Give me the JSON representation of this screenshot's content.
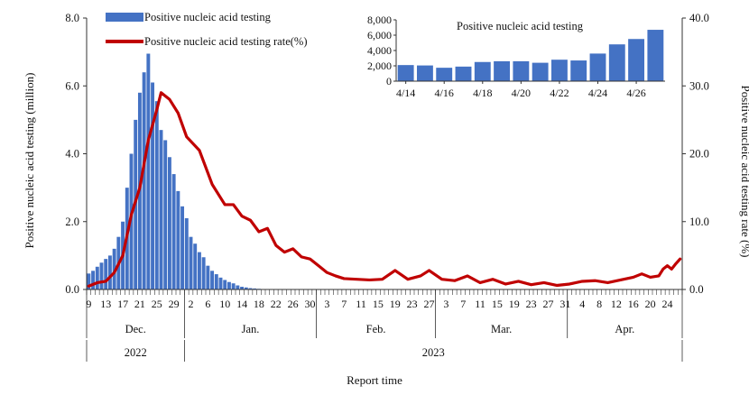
{
  "colors": {
    "bars": "#4472c4",
    "line": "#c00000",
    "axis": "#333333"
  },
  "chart_data": [
    {
      "type": "bar+line",
      "legend": {
        "placement": "top-left",
        "items": [
          {
            "label": "Positive nucleic acid testing",
            "symbol": "bar"
          },
          {
            "label": "Positive nucleic acid testing rate(%)",
            "symbol": "line"
          }
        ]
      },
      "xlabel": "Report time",
      "ylabel_left": "Positive nucleic acid testing (million)",
      "ylabel_right": "Positive nucleic acid testing rate (%)",
      "ylim_left": [
        0,
        8
      ],
      "ylim_right": [
        0,
        40
      ],
      "yticks_left": [
        "0.0",
        "2.0",
        "4.0",
        "6.0",
        "8.0"
      ],
      "yticks_right": [
        "0.0",
        "10.0",
        "20.0",
        "30.0",
        "40.0"
      ],
      "x_day_labels": [
        "9",
        "13",
        "17",
        "21",
        "25",
        "29",
        "2",
        "6",
        "10",
        "14",
        "18",
        "22",
        "26",
        "30",
        "3",
        "7",
        "11",
        "15",
        "19",
        "23",
        "27",
        "3",
        "7",
        "11",
        "15",
        "19",
        "23",
        "27",
        "31",
        "4",
        "8",
        "12",
        "16",
        "20",
        "24"
      ],
      "months": [
        "Dec.",
        "Jan.",
        "Feb.",
        "Mar.",
        "Apr."
      ],
      "years": [
        "2022",
        "2023"
      ],
      "bar_start_date": "2022-12-09",
      "bar_values_million": [
        0.47,
        0.55,
        0.67,
        0.79,
        0.9,
        1.0,
        1.2,
        1.55,
        2.0,
        3.0,
        4.0,
        5.0,
        5.8,
        6.4,
        6.95,
        6.1,
        5.55,
        4.7,
        4.4,
        3.9,
        3.4,
        2.9,
        2.45,
        2.1,
        1.55,
        1.35,
        1.1,
        0.95,
        0.7,
        0.55,
        0.45,
        0.35,
        0.28,
        0.22,
        0.18,
        0.12,
        0.08,
        0.06,
        0.04,
        0.03,
        0.02,
        0.01
      ],
      "line_points_pct": [
        [
          "2022-12-09",
          0.5
        ],
        [
          "2022-12-11",
          1.0
        ],
        [
          "2022-12-13",
          1.2
        ],
        [
          "2022-12-15",
          2.5
        ],
        [
          "2022-12-17",
          5.0
        ],
        [
          "2022-12-19",
          11.0
        ],
        [
          "2022-12-21",
          15.0
        ],
        [
          "2022-12-23",
          22.0
        ],
        [
          "2022-12-25",
          26.5
        ],
        [
          "2022-12-26",
          29.0
        ],
        [
          "2022-12-28",
          28.0
        ],
        [
          "2022-12-30",
          26.0
        ],
        [
          "2023-01-01",
          22.5
        ],
        [
          "2023-01-04",
          20.5
        ],
        [
          "2023-01-07",
          15.5
        ],
        [
          "2023-01-10",
          12.5
        ],
        [
          "2023-01-12",
          12.5
        ],
        [
          "2023-01-14",
          10.8
        ],
        [
          "2023-01-16",
          10.2
        ],
        [
          "2023-01-18",
          8.5
        ],
        [
          "2023-01-20",
          9.0
        ],
        [
          "2023-01-22",
          6.5
        ],
        [
          "2023-01-24",
          5.5
        ],
        [
          "2023-01-26",
          6.0
        ],
        [
          "2023-01-28",
          4.8
        ],
        [
          "2023-01-30",
          4.5
        ],
        [
          "2023-02-01",
          3.5
        ],
        [
          "2023-02-03",
          2.5
        ],
        [
          "2023-02-05",
          2.0
        ],
        [
          "2023-02-07",
          1.6
        ],
        [
          "2023-02-10",
          1.5
        ],
        [
          "2023-02-13",
          1.4
        ],
        [
          "2023-02-16",
          1.5
        ],
        [
          "2023-02-19",
          2.8
        ],
        [
          "2023-02-22",
          1.5
        ],
        [
          "2023-02-25",
          2.0
        ],
        [
          "2023-02-27",
          2.8
        ],
        [
          "2023-03-02",
          1.5
        ],
        [
          "2023-03-05",
          1.3
        ],
        [
          "2023-03-08",
          2.0
        ],
        [
          "2023-03-11",
          1.0
        ],
        [
          "2023-03-14",
          1.5
        ],
        [
          "2023-03-17",
          0.8
        ],
        [
          "2023-03-20",
          1.2
        ],
        [
          "2023-03-23",
          0.7
        ],
        [
          "2023-03-26",
          1.0
        ],
        [
          "2023-03-29",
          0.6
        ],
        [
          "2023-04-01",
          0.8
        ],
        [
          "2023-04-04",
          1.2
        ],
        [
          "2023-04-07",
          1.3
        ],
        [
          "2023-04-10",
          1.0
        ],
        [
          "2023-04-13",
          1.4
        ],
        [
          "2023-04-16",
          1.8
        ],
        [
          "2023-04-18",
          2.3
        ],
        [
          "2023-04-20",
          1.8
        ],
        [
          "2023-04-22",
          2.0
        ],
        [
          "2023-04-23",
          3.0
        ],
        [
          "2023-04-24",
          3.5
        ],
        [
          "2023-04-25",
          3.0
        ],
        [
          "2023-04-26",
          3.8
        ],
        [
          "2023-04-27",
          4.5
        ]
      ]
    },
    {
      "type": "bar",
      "title": "Positive nucleic acid testing",
      "categories": [
        "4/14",
        "4/15",
        "4/16",
        "4/17",
        "4/18",
        "4/19",
        "4/20",
        "4/21",
        "4/22",
        "4/23",
        "4/24",
        "4/25",
        "4/26",
        "4/27"
      ],
      "x_tick_labels": [
        "4/14",
        "4/16",
        "4/18",
        "4/20",
        "4/22",
        "4/24",
        "4/26"
      ],
      "values": [
        2100,
        2050,
        1750,
        1900,
        2500,
        2600,
        2600,
        2400,
        2800,
        2700,
        3600,
        4800,
        5500,
        6700
      ],
      "ylim": [
        0,
        8000
      ],
      "yticks": [
        "0",
        "2,000",
        "4,000",
        "6,000",
        "8,000"
      ]
    }
  ]
}
